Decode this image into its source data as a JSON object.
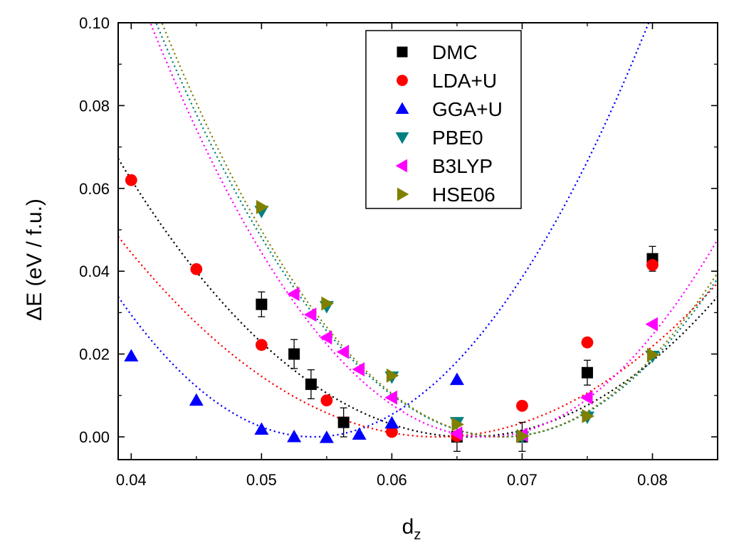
{
  "chart_data": {
    "type": "scatter",
    "title": "",
    "xlabel": "d",
    "xlabel_subscript": "z",
    "ylabel": "ΔE (eV / f.u.)",
    "xlim": [
      0.039,
      0.085
    ],
    "ylim": [
      -0.0055,
      0.1
    ],
    "xticks": [
      0.04,
      0.05,
      0.06,
      0.07,
      0.08
    ],
    "yticks": [
      0.0,
      0.02,
      0.04,
      0.06,
      0.08,
      0.1
    ],
    "xtick_labels": [
      "0.04",
      "0.05",
      "0.06",
      "0.07",
      "0.08"
    ],
    "ytick_labels": [
      "0.00",
      "0.02",
      "0.04",
      "0.06",
      "0.08",
      "0.10"
    ],
    "legend_position": "top-center",
    "series": [
      {
        "name": "DMC",
        "color": "#000000",
        "marker": "square",
        "points": [
          [
            0.05,
            0.032
          ],
          [
            0.0525,
            0.02
          ],
          [
            0.0538,
            0.0127
          ],
          [
            0.0563,
            0.0035
          ],
          [
            0.065,
            0.0
          ],
          [
            0.07,
            0.0
          ],
          [
            0.075,
            0.0155
          ],
          [
            0.08,
            0.043
          ]
        ],
        "errors": [
          0.003,
          0.0035,
          0.0035,
          0.0035,
          0.0035,
          0.0035,
          0.003,
          0.003
        ],
        "fit": {
          "x0": 0.0658,
          "a": 90,
          "b": 5000
        }
      },
      {
        "name": "LDA+U",
        "color": "#ff0000",
        "marker": "circle",
        "points": [
          [
            0.04,
            0.062
          ],
          [
            0.045,
            0.0405
          ],
          [
            0.05,
            0.0222
          ],
          [
            0.055,
            0.0088
          ],
          [
            0.06,
            0.0012
          ],
          [
            0.065,
            0.0002
          ],
          [
            0.07,
            0.0075
          ],
          [
            0.075,
            0.0228
          ],
          [
            0.08,
            0.0415
          ]
        ],
        "fit": {
          "x0": 0.0635,
          "a": 80,
          "b": 1000
        }
      },
      {
        "name": "GGA+U",
        "color": "#0000ff",
        "marker": "triangle-up",
        "points": [
          [
            0.04,
            0.0195
          ],
          [
            0.045,
            0.0088
          ],
          [
            0.05,
            0.0018
          ],
          [
            0.0525,
            0.0
          ],
          [
            0.055,
            -0.0002
          ],
          [
            0.0575,
            0.0006
          ],
          [
            0.06,
            0.0033
          ],
          [
            0.065,
            0.0138
          ]
        ],
        "fit": {
          "x0": 0.054,
          "a": 150,
          "b": 2000
        }
      },
      {
        "name": "PBE0",
        "color": "#008080",
        "marker": "triangle-down",
        "points": [
          [
            0.05,
            0.0545
          ],
          [
            0.055,
            0.0315
          ],
          [
            0.06,
            0.0145
          ],
          [
            0.065,
            0.0035
          ],
          [
            0.07,
            0.0
          ],
          [
            0.075,
            0.0048
          ],
          [
            0.08,
            0.0195
          ]
        ],
        "fit": {
          "x0": 0.0685,
          "a": 140,
          "b": 2000
        }
      },
      {
        "name": "B3LYP",
        "color": "#ff00ff",
        "marker": "triangle-left",
        "points": [
          [
            0.0525,
            0.0345
          ],
          [
            0.0538,
            0.0295
          ],
          [
            0.055,
            0.024
          ],
          [
            0.0563,
            0.0205
          ],
          [
            0.0575,
            0.0163
          ],
          [
            0.06,
            0.0095
          ],
          [
            0.065,
            0.0008
          ],
          [
            0.07,
            0.0005
          ],
          [
            0.075,
            0.0095
          ],
          [
            0.08,
            0.0272
          ]
        ],
        "fit": {
          "x0": 0.0672,
          "a": 150,
          "b": 1500
        }
      },
      {
        "name": "HSE06",
        "color": "#808000",
        "marker": "triangle-right",
        "points": [
          [
            0.05,
            0.0555
          ],
          [
            0.055,
            0.0322
          ],
          [
            0.06,
            0.0148
          ],
          [
            0.065,
            0.003
          ],
          [
            0.07,
            0.0002
          ],
          [
            0.075,
            0.005
          ],
          [
            0.08,
            0.0198
          ]
        ],
        "fit": {
          "x0": 0.0685,
          "a": 145,
          "b": 1800
        }
      }
    ]
  }
}
